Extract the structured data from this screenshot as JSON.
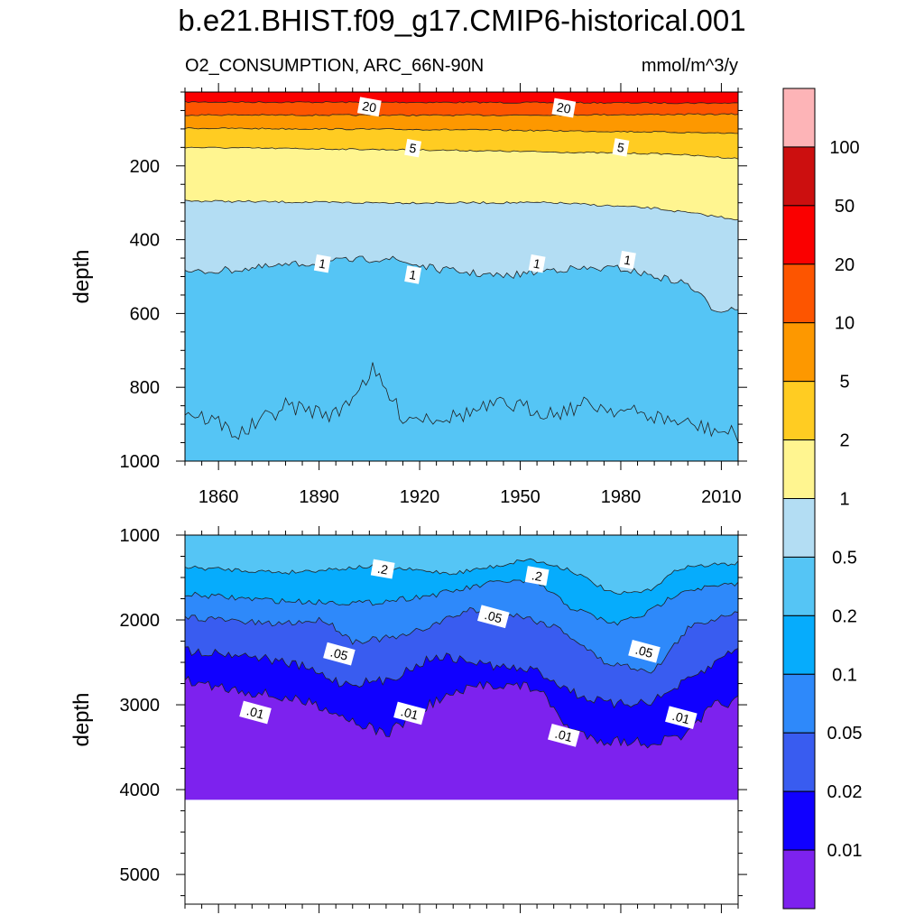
{
  "title": "b.e21.BHIST.f09_g17.CMIP6-historical.001",
  "subtitle_left": "O2_CONSUMPTION, ARC_66N-90N",
  "subtitle_right": "mmol/m^3/y",
  "chart_data": [
    {
      "type": "contour",
      "panel": "upper",
      "ylabel": "depth",
      "x_ticks": [
        1860,
        1890,
        1920,
        1950,
        1980,
        2010
      ],
      "y_ticks": [
        200,
        400,
        600,
        800,
        1000
      ],
      "xlim": [
        1850,
        2015
      ],
      "ylim": [
        1000,
        0
      ],
      "contour_labels": [
        {
          "text": "20",
          "x": 1905,
          "y": 40
        },
        {
          "text": "20",
          "x": 1963,
          "y": 43
        },
        {
          "text": "5",
          "x": 1918,
          "y": 152
        },
        {
          "text": "5",
          "x": 1980,
          "y": 150
        },
        {
          "text": "1",
          "x": 1891,
          "y": 465
        },
        {
          "text": "1",
          "x": 1918,
          "y": 495
        },
        {
          "text": "1",
          "x": 1955,
          "y": 465
        },
        {
          "text": "1",
          "x": 1982,
          "y": 455
        }
      ]
    },
    {
      "type": "contour",
      "panel": "lower",
      "ylabel": "depth",
      "x_ticks": [
        1860,
        1890,
        1920,
        1950,
        1980,
        2010
      ],
      "y_ticks": [
        1000,
        2000,
        3000,
        4000,
        5000
      ],
      "xlim": [
        1850,
        2015
      ],
      "ylim": [
        5350,
        1000
      ],
      "contour_labels": [
        {
          "text": ".2",
          "x": 1909,
          "y": 1400
        },
        {
          "text": ".2",
          "x": 1955,
          "y": 1480
        },
        {
          "text": ".05",
          "x": 1896,
          "y": 2400
        },
        {
          "text": ".05",
          "x": 1942,
          "y": 1960
        },
        {
          "text": ".05",
          "x": 1987,
          "y": 2370
        },
        {
          "text": ".01",
          "x": 1871,
          "y": 3090
        },
        {
          "text": ".01",
          "x": 1917,
          "y": 3100
        },
        {
          "text": ".01",
          "x": 1963,
          "y": 3360
        },
        {
          "text": ".01",
          "x": 1998,
          "y": 3150
        }
      ]
    }
  ],
  "colorbar": {
    "labels": [
      "100",
      "50",
      "20",
      "10",
      "5",
      "2",
      "1",
      "0.5",
      "0.2",
      "0.1",
      "0.05",
      "0.02",
      "0.01"
    ],
    "colors": [
      "#fdb4b7",
      "#cc0f0f",
      "#fa0000",
      "#fd5500",
      "#fd9800",
      "#ffcc22",
      "#fff590",
      "#b3ddf3",
      "#55c5f5",
      "#06acfc",
      "#2e89fa",
      "#395cf0",
      "#1000ff",
      "#7d22ee"
    ]
  }
}
